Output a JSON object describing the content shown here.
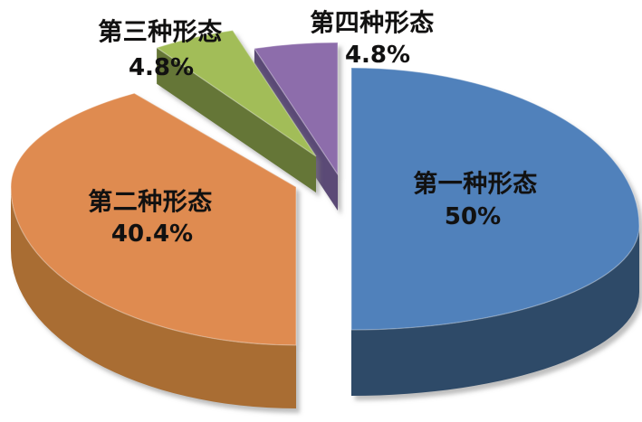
{
  "chart_data": {
    "type": "pie",
    "style": "3d-exploded",
    "title": "",
    "legend": "none",
    "background": "#ffffff",
    "text_color": "#111111",
    "start_angle": "12-o'clock",
    "direction": "clockwise",
    "value_unit": "%",
    "slices": [
      {
        "label": "第一种形态",
        "value": 50,
        "percent_label": "50%",
        "color": "#5081bb",
        "side_color": "#2e4a68"
      },
      {
        "label": "第二种形态",
        "value": 40.4,
        "percent_label": "40.4%",
        "color": "#df8b50",
        "side_color": "#a96d33"
      },
      {
        "label": "第三种形态",
        "value": 4.8,
        "percent_label": "4.8%",
        "color": "#a2bd58",
        "side_color": "#657637"
      },
      {
        "label": "第四种形态",
        "value": 4.8,
        "percent_label": "4.8%",
        "color": "#8d6dab",
        "side_color": "#5b4a76"
      }
    ]
  }
}
